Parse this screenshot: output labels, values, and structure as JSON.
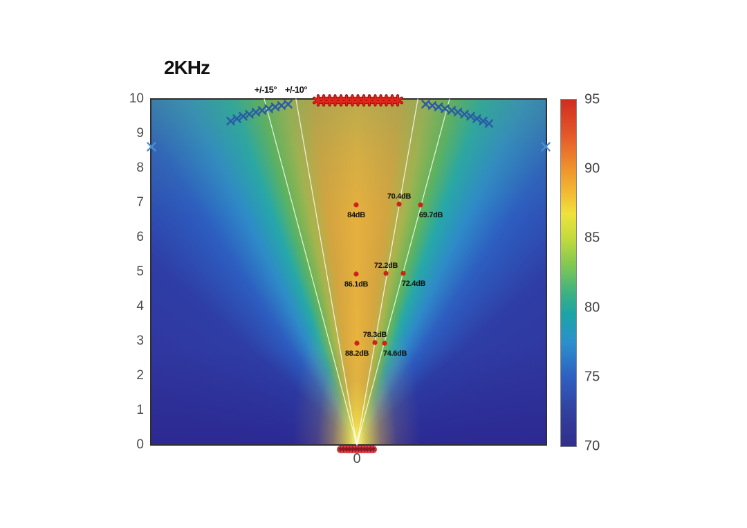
{
  "chart_data": {
    "type": "heatmap",
    "title": "2KHz",
    "xlabel": "",
    "ylabel": "",
    "x_ticks": [
      "0"
    ],
    "y_ticks": [
      0,
      1,
      2,
      3,
      4,
      5,
      6,
      7,
      8,
      9,
      10
    ],
    "x_range": [
      -5.96,
      5.48
    ],
    "y_range": [
      0,
      10
    ],
    "grid": false,
    "legend": "none",
    "colorbar": {
      "min": 70,
      "max": 95,
      "ticks": [
        95,
        90,
        85,
        80,
        75,
        70
      ],
      "unit": "dB",
      "stops": [
        [
          "0%",
          "#cf2d1f"
        ],
        [
          "10%",
          "#e4572a"
        ],
        [
          "20%",
          "#f0932c"
        ],
        [
          "28%",
          "#f2c135"
        ],
        [
          "33%",
          "#eee33c"
        ],
        [
          "40%",
          "#c3da3d"
        ],
        [
          "48%",
          "#7ec754"
        ],
        [
          "56%",
          "#3bb183"
        ],
        [
          "62%",
          "#1ba4a6"
        ],
        [
          "70%",
          "#2b90cc"
        ],
        [
          "80%",
          "#2e60c2"
        ],
        [
          "90%",
          "#31409e"
        ],
        [
          "100%",
          "#322e8c"
        ]
      ]
    },
    "dispersion_lines": {
      "labels": [
        "+/-15°",
        "+/-10°"
      ],
      "angles_deg": [
        15,
        10
      ],
      "color": "rgba(255,255,255,0.8)"
    },
    "measurements": [
      {
        "x": -0.02,
        "y": 6.94,
        "label": "84dB",
        "placement": "below"
      },
      {
        "x": 1.22,
        "y": 6.96,
        "label": "70.4dB",
        "placement": "above"
      },
      {
        "x": 1.84,
        "y": 6.94,
        "label": "69.7dB",
        "placement": "below-right"
      },
      {
        "x": -0.02,
        "y": 4.94,
        "label": "86.1dB",
        "placement": "below"
      },
      {
        "x": 0.84,
        "y": 4.96,
        "label": "72.2dB",
        "placement": "above"
      },
      {
        "x": 1.34,
        "y": 4.96,
        "label": "72.4dB",
        "placement": "below-right"
      },
      {
        "x": 0.0,
        "y": 2.94,
        "label": "88.2dB",
        "placement": "below"
      },
      {
        "x": 0.52,
        "y": 2.96,
        "label": "78.3dB",
        "placement": "above"
      },
      {
        "x": 0.8,
        "y": 2.94,
        "label": "74.6dB",
        "placement": "below-right"
      }
    ],
    "beamwidth_markers": {
      "color": "#2a5aa8",
      "left_arc": [
        [
          -3.65,
          9.36
        ],
        [
          -3.47,
          9.43
        ],
        [
          -3.29,
          9.5
        ],
        [
          -3.11,
          9.56
        ],
        [
          -2.92,
          9.62
        ],
        [
          -2.74,
          9.67
        ],
        [
          -2.55,
          9.72
        ],
        [
          -2.36,
          9.77
        ],
        [
          -2.18,
          9.81
        ],
        [
          -1.99,
          9.85
        ]
      ],
      "right_arc": [
        [
          1.99,
          9.85
        ],
        [
          2.18,
          9.81
        ],
        [
          2.36,
          9.77
        ],
        [
          2.55,
          9.72
        ],
        [
          2.74,
          9.67
        ],
        [
          2.92,
          9.62
        ],
        [
          3.11,
          9.56
        ],
        [
          3.29,
          9.5
        ],
        [
          3.47,
          9.43
        ],
        [
          3.65,
          9.36
        ],
        [
          3.82,
          9.29
        ]
      ],
      "edge_points": [
        [
          -5.94,
          8.62
        ],
        [
          5.46,
          8.62
        ]
      ]
    },
    "source_markers_top": {
      "color": "#e8251a",
      "outline": "#a31210",
      "y": 9.96,
      "x_values": [
        -1.12,
        -0.96,
        -0.79,
        -0.63,
        -0.46,
        -0.3,
        -0.13,
        0.03,
        0.2,
        0.36,
        0.53,
        0.69,
        0.85,
        1.02,
        1.18
      ]
    },
    "source_cluster_bottom": {
      "fill": "#d8464e",
      "mark_color": "#8e1620",
      "y": -0.12,
      "x_values": [
        -0.48,
        -0.39,
        -0.3,
        -0.22,
        -0.13,
        -0.04,
        0.04,
        0.13,
        0.22,
        0.3,
        0.39,
        0.48
      ]
    }
  },
  "colors": {
    "dot_red": "#cc2418",
    "axis_text": "#4d4d4d",
    "label_text": "#111111"
  }
}
